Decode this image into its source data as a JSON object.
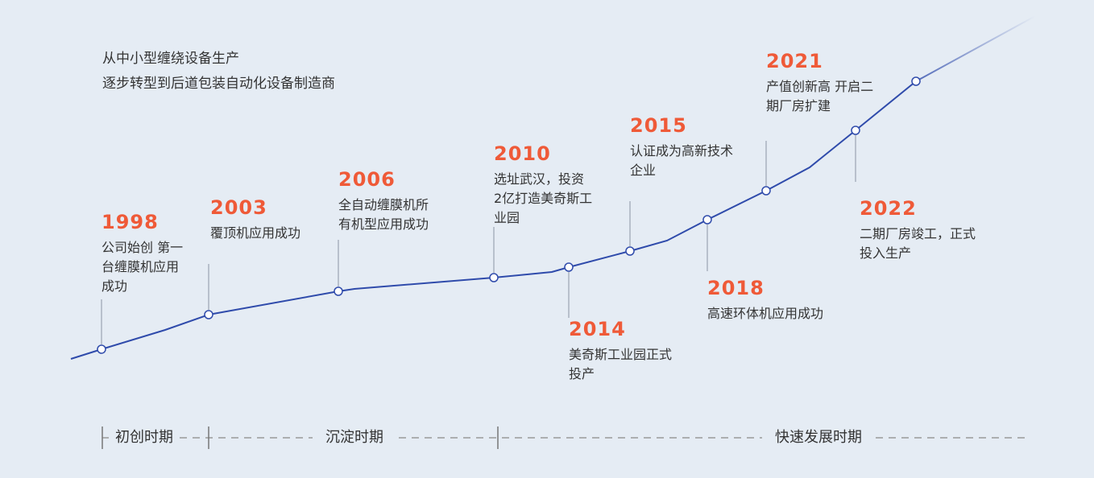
{
  "intro": [
    "从中小型缠绕设备生产",
    "逐步转型到后道包装自动化设备制造商"
  ],
  "milestones": [
    {
      "year": "1998",
      "text": "公司始创 第一\n台缠膜机应用\n成功"
    },
    {
      "year": "2003",
      "text": "覆顶机应用成功"
    },
    {
      "year": "2006",
      "text": "全自动缠膜机所\n有机型应用成功"
    },
    {
      "year": "2010",
      "text": "选址武汉，投资\n2亿打造美奇斯工\n业园"
    },
    {
      "year": "2014",
      "text": "美奇斯工业园正式\n投产"
    },
    {
      "year": "2015",
      "text": "认证成为高新技术\n企业"
    },
    {
      "year": "2018",
      "text": "高速环体机应用成功"
    },
    {
      "year": "2021",
      "text": "产值创新高 开启二\n期厂房扩建"
    },
    {
      "year": "2022",
      "text": "二期厂房竣工，正式\n投入生产"
    }
  ],
  "phases": [
    "初创时期",
    "沉淀时期",
    "快速发展时期"
  ],
  "colors": {
    "line": "#2f4bab",
    "year": "#ef5a38",
    "background": "#e5ecf4"
  }
}
